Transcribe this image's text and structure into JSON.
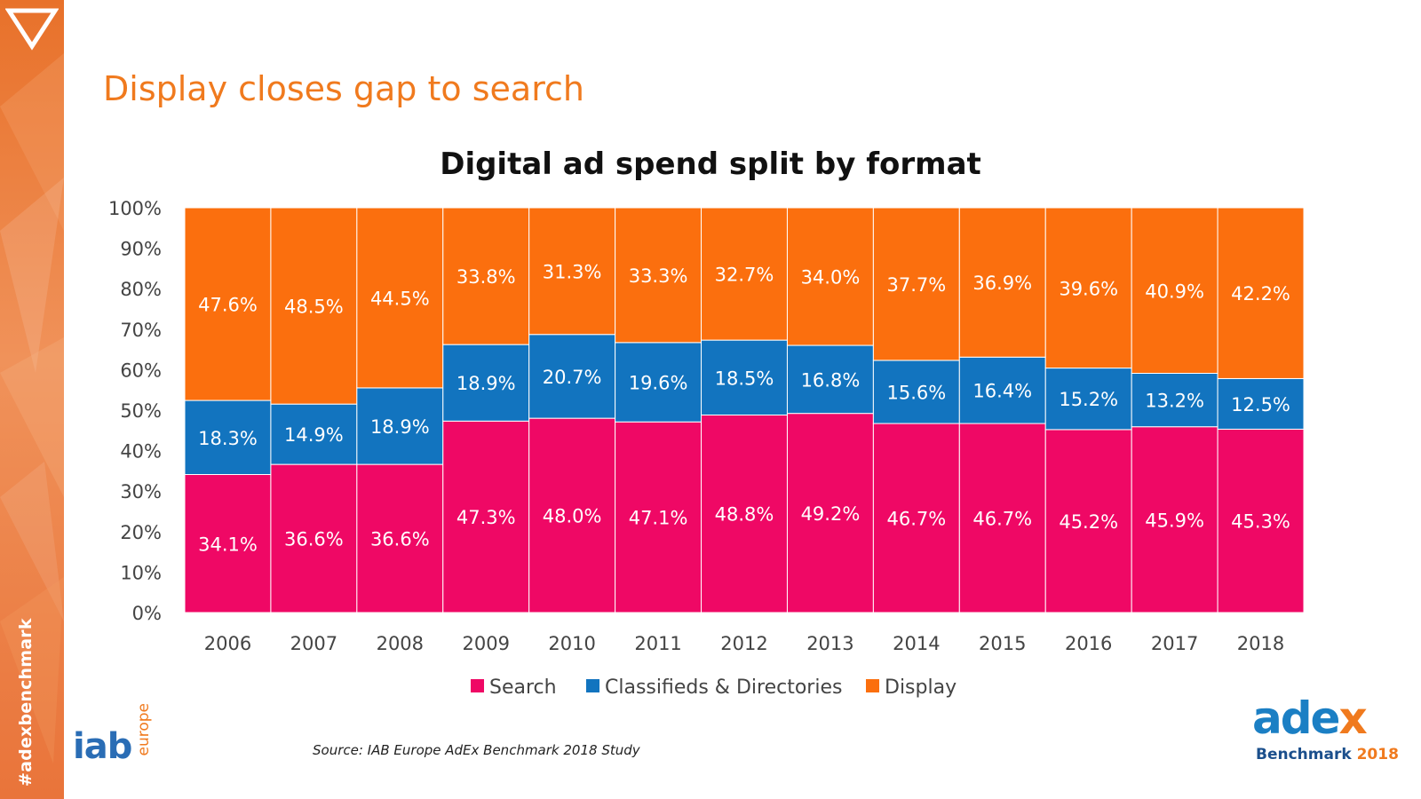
{
  "slide": {
    "title": "Display closes gap to search",
    "hashtag": "#adexbenchmark",
    "source": "Source: IAB Europe AdEx Benchmark 2018 Study"
  },
  "logos": {
    "iab_text": "iab",
    "iab_region": "europe",
    "adex_prefix": "ade",
    "adex_x": "x",
    "adex_sub": "Benchmark",
    "adex_year": "2018"
  },
  "colors": {
    "search": "#ef0865",
    "classifieds": "#1274bf",
    "display": "#fb6f0e",
    "title_accent": "#f07a1e"
  },
  "chart_data": {
    "type": "bar",
    "stacked": true,
    "title": "Digital ad spend split by format",
    "xlabel": "",
    "ylabel": "",
    "ylim": [
      0,
      100
    ],
    "y_ticks": [
      "0%",
      "10%",
      "20%",
      "30%",
      "40%",
      "50%",
      "60%",
      "70%",
      "80%",
      "90%",
      "100%"
    ],
    "categories": [
      "2006",
      "2007",
      "2008",
      "2009",
      "2010",
      "2011",
      "2012",
      "2013",
      "2014",
      "2015",
      "2016",
      "2017",
      "2018"
    ],
    "series": [
      {
        "name": "Search",
        "color": "#ef0865",
        "values": [
          34.1,
          36.6,
          36.6,
          47.3,
          48.0,
          47.1,
          48.8,
          49.2,
          46.7,
          46.7,
          45.2,
          45.9,
          45.3
        ],
        "labels": [
          "34.1%",
          "36.6%",
          "36.6%",
          "47.3%",
          "48.0%",
          "47.1%",
          "48.8%",
          "49.2%",
          "46.7%",
          "46.7%",
          "45.2%",
          "45.9%",
          "45.3%"
        ]
      },
      {
        "name": "Classifieds & Directories",
        "color": "#1274bf",
        "values": [
          18.3,
          14.9,
          18.9,
          18.9,
          20.7,
          19.6,
          18.5,
          16.8,
          15.6,
          16.4,
          15.2,
          13.2,
          12.5
        ],
        "labels": [
          "18.3%",
          "14.9%",
          "18.9%",
          "18.9%",
          "20.7%",
          "19.6%",
          "18.5%",
          "16.8%",
          "15.6%",
          "16.4%",
          "15.2%",
          "13.2%",
          "12.5%"
        ]
      },
      {
        "name": "Display",
        "color": "#fb6f0e",
        "values": [
          47.6,
          48.5,
          44.5,
          33.8,
          31.3,
          33.3,
          32.7,
          34.0,
          37.7,
          36.9,
          39.6,
          40.9,
          42.2
        ],
        "labels": [
          "47.6%",
          "48.5%",
          "44.5%",
          "33.8%",
          "31.3%",
          "33.3%",
          "32.7%",
          "34.0%",
          "37.7%",
          "36.9%",
          "39.6%",
          "40.9%",
          "42.2%"
        ]
      }
    ],
    "legend_position": "bottom",
    "grid": false
  }
}
